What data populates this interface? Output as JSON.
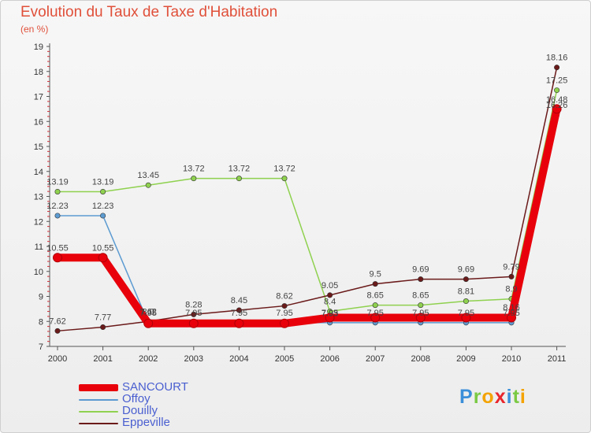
{
  "header": {
    "title": "Evolution du Taux de Taxe d'Habitation",
    "subtitle": "(en %)"
  },
  "logo": {
    "letters": [
      "P",
      "r",
      "o",
      "x",
      "i",
      "t",
      "i"
    ],
    "colors": [
      "#3b8fd9",
      "#7ac943",
      "#f4a300",
      "#e8262c",
      "#3b8fd9",
      "#7ac943",
      "#f4a300"
    ]
  },
  "chart_data": {
    "type": "line",
    "title": "Evolution du Taux de Taxe d'Habitation",
    "ylabel": "(en %)",
    "xlabel": "",
    "x": [
      "2000",
      "2001",
      "2002",
      "2003",
      "2004",
      "2005",
      "2006",
      "2007",
      "2008",
      "2009",
      "2010",
      "2011"
    ],
    "ylim": [
      7,
      19
    ],
    "yticks": [
      7,
      8,
      9,
      10,
      11,
      12,
      13,
      14,
      15,
      16,
      17,
      18,
      19
    ],
    "grid": false,
    "legend_position": "bottom-left",
    "series": [
      {
        "name": "SANCOURT",
        "color": "#e8000b",
        "style": "thick",
        "values": [
          10.55,
          10.55,
          7.92,
          7.92,
          7.92,
          7.92,
          8.15,
          8.15,
          8.15,
          8.15,
          8.15,
          16.5
        ],
        "labels": [
          "10.55",
          "10.55",
          "",
          "",
          "",
          "",
          "",
          "",
          "",
          "",
          "",
          ""
        ]
      },
      {
        "name": "Offoy",
        "color": "#5c9bd1",
        "values": [
          12.23,
          12.23,
          7.95,
          7.95,
          7.95,
          7.95,
          7.95,
          7.95,
          7.95,
          7.95,
          7.95,
          16.26
        ],
        "labels": [
          "12.23",
          "12.23",
          "7.95",
          "7.95",
          "7.95",
          "7.95",
          "7.95",
          "7.95",
          "7.95",
          "7.95",
          "7.95",
          "16.26"
        ]
      },
      {
        "name": "Douilly",
        "color": "#8fd14f",
        "values": [
          13.19,
          13.19,
          13.45,
          13.72,
          13.72,
          13.72,
          8.4,
          8.65,
          8.65,
          8.81,
          8.9,
          17.25
        ],
        "labels": [
          "13.19",
          "13.19",
          "13.45",
          "13.72",
          "13.72",
          "13.72",
          "8.4",
          "8.65",
          "8.65",
          "8.81",
          "8.9",
          "17.25"
        ]
      },
      {
        "name": "Eppeville",
        "color": "#6b1a1a",
        "values": [
          7.62,
          7.77,
          8.0,
          8.28,
          8.45,
          8.62,
          9.05,
          9.5,
          9.69,
          9.69,
          9.79,
          18.16
        ],
        "labels": [
          "7.62",
          "7.77",
          "8.0",
          "8.28",
          "8.45",
          "8.62",
          "9.05",
          "9.5",
          "9.69",
          "9.69",
          "9.79",
          "18.16"
        ]
      }
    ],
    "extra_labels": [
      "16.48",
      "7.62",
      "8.16",
      "7.93"
    ]
  }
}
